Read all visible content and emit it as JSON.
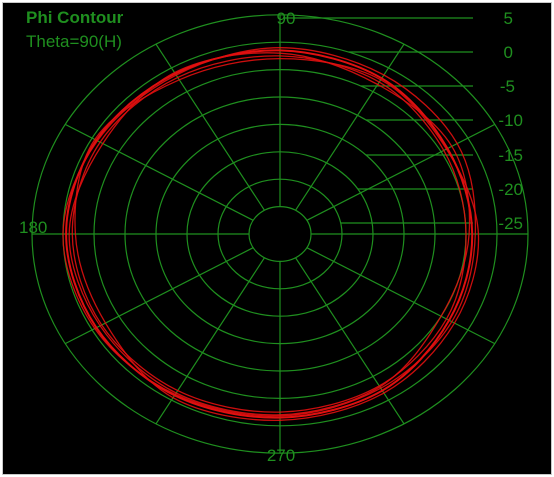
{
  "chart_data": {
    "type": "polar-line",
    "title": "Phi Contour",
    "subtitle": "Theta=90(H)",
    "angle_tick_labels": [
      "90",
      "180",
      "270"
    ],
    "radial_tick_labels": [
      "5",
      "0",
      "-5",
      "-10",
      "-15",
      "-20",
      "-25"
    ],
    "radial_range_db": [
      -35,
      5
    ],
    "radial_ring_step_db": 5,
    "angle_spoke_step_deg": 30,
    "grid": true,
    "colors": {
      "background": "#000000",
      "grid": "#1f8f1f",
      "text": "#1f8f1f",
      "series": "#e01010"
    },
    "series": [
      {
        "angles_deg": [
          0,
          30,
          60,
          90,
          120,
          150,
          180,
          210,
          240,
          270,
          300,
          330
        ],
        "values_db": [
          -4.0,
          -3.8,
          -2.2,
          -1.5,
          -1.2,
          -0.8,
          -0.5,
          -0.8,
          -1.0,
          -1.5,
          -2.0,
          -3.5
        ]
      },
      {
        "angles_deg": [
          0,
          30,
          60,
          90,
          120,
          150,
          180,
          210,
          240,
          270,
          300,
          330
        ],
        "values_db": [
          -5.0,
          -4.5,
          -3.0,
          -2.5,
          -2.0,
          -1.5,
          -1.5,
          -1.8,
          -2.0,
          -2.5,
          -3.0,
          -4.0
        ]
      },
      {
        "angles_deg": [
          0,
          30,
          60,
          90,
          120,
          150,
          180,
          210,
          240,
          270,
          300,
          330
        ],
        "values_db": [
          -3.5,
          -2.0,
          -1.5,
          -1.0,
          -1.5,
          -1.0,
          0.0,
          -0.5,
          -1.2,
          -1.8,
          -2.5,
          -3.0
        ]
      },
      {
        "angles_deg": [
          0,
          30,
          60,
          90,
          120,
          150,
          180,
          210,
          240,
          270,
          300,
          330
        ],
        "values_db": [
          -4.5,
          -3.0,
          -3.5,
          -2.0,
          -1.0,
          -2.0,
          -1.0,
          -1.5,
          -1.5,
          -2.0,
          -2.8,
          -5.0
        ]
      },
      {
        "angles_deg": [
          0,
          30,
          60,
          90,
          120,
          150,
          180,
          210,
          240,
          270,
          300,
          330
        ],
        "values_db": [
          -3.0,
          -4.0,
          -2.5,
          -3.0,
          -2.5,
          -0.5,
          -2.0,
          -2.5,
          -0.5,
          -1.0,
          -1.5,
          -2.5
        ]
      }
    ]
  }
}
